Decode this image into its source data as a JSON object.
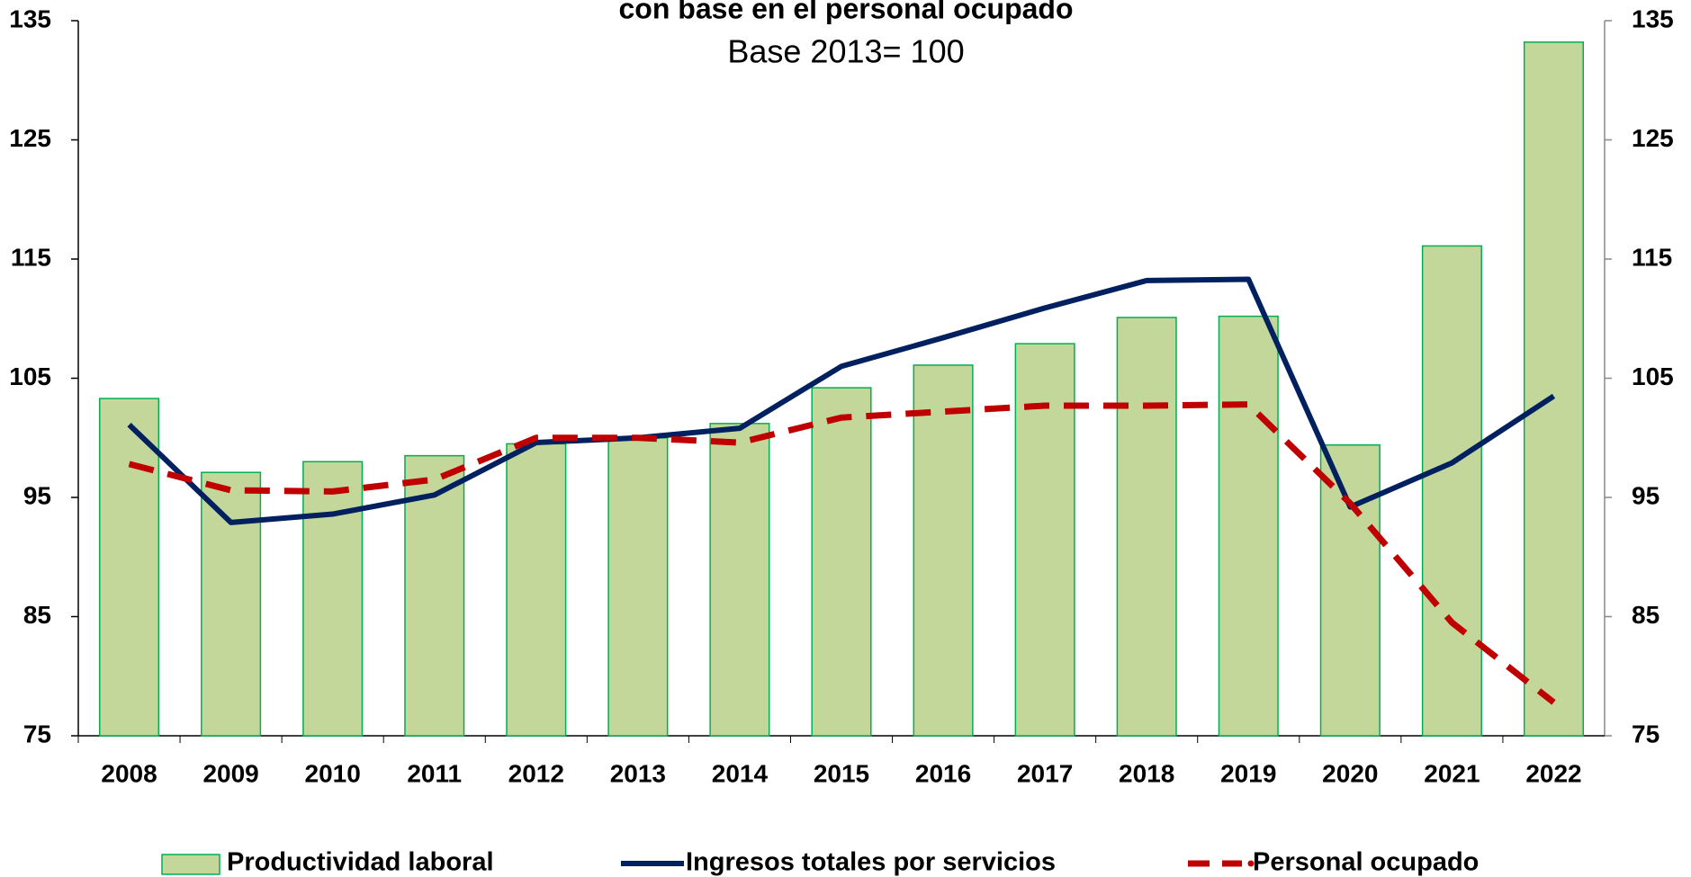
{
  "chart_data": {
    "type": "bar-line",
    "title": "con base en el personal ocupado",
    "subtitle": "Base 2013= 100",
    "categories": [
      "2008",
      "2009",
      "2010",
      "2011",
      "2012",
      "2013",
      "2014",
      "2015",
      "2016",
      "2017",
      "2018",
      "2019",
      "2020",
      "2021",
      "2022"
    ],
    "series": [
      {
        "name": "Productividad laboral",
        "type": "bar",
        "color": "#c4d79b",
        "edge": "#00b050",
        "values": [
          103.3,
          97.1,
          98.0,
          98.5,
          99.5,
          100,
          101.2,
          104.2,
          106.1,
          107.9,
          110.1,
          110.2,
          99.4,
          116.1,
          133.2
        ]
      },
      {
        "name": "Ingresos totales por servicios",
        "type": "line",
        "color": "#002060",
        "values": [
          101.1,
          92.9,
          93.6,
          95.2,
          99.6,
          100,
          100.8,
          106.0,
          108.4,
          110.9,
          113.2,
          113.3,
          94.2,
          97.9,
          103.5
        ]
      },
      {
        "name": "Personal ocupado",
        "type": "dashed",
        "color": "#c00000",
        "values": [
          97.8,
          95.6,
          95.5,
          96.5,
          100,
          100,
          99.6,
          101.7,
          102.2,
          102.7,
          102.7,
          102.8,
          94.5,
          84.5,
          77.8
        ]
      }
    ],
    "ylim": [
      75,
      135
    ],
    "yticks": [
      75,
      85,
      95,
      105,
      115,
      125,
      135
    ],
    "y2lim": [
      75,
      135
    ],
    "y2ticks": [
      75,
      85,
      95,
      105,
      115,
      125,
      135
    ],
    "grid": false
  }
}
